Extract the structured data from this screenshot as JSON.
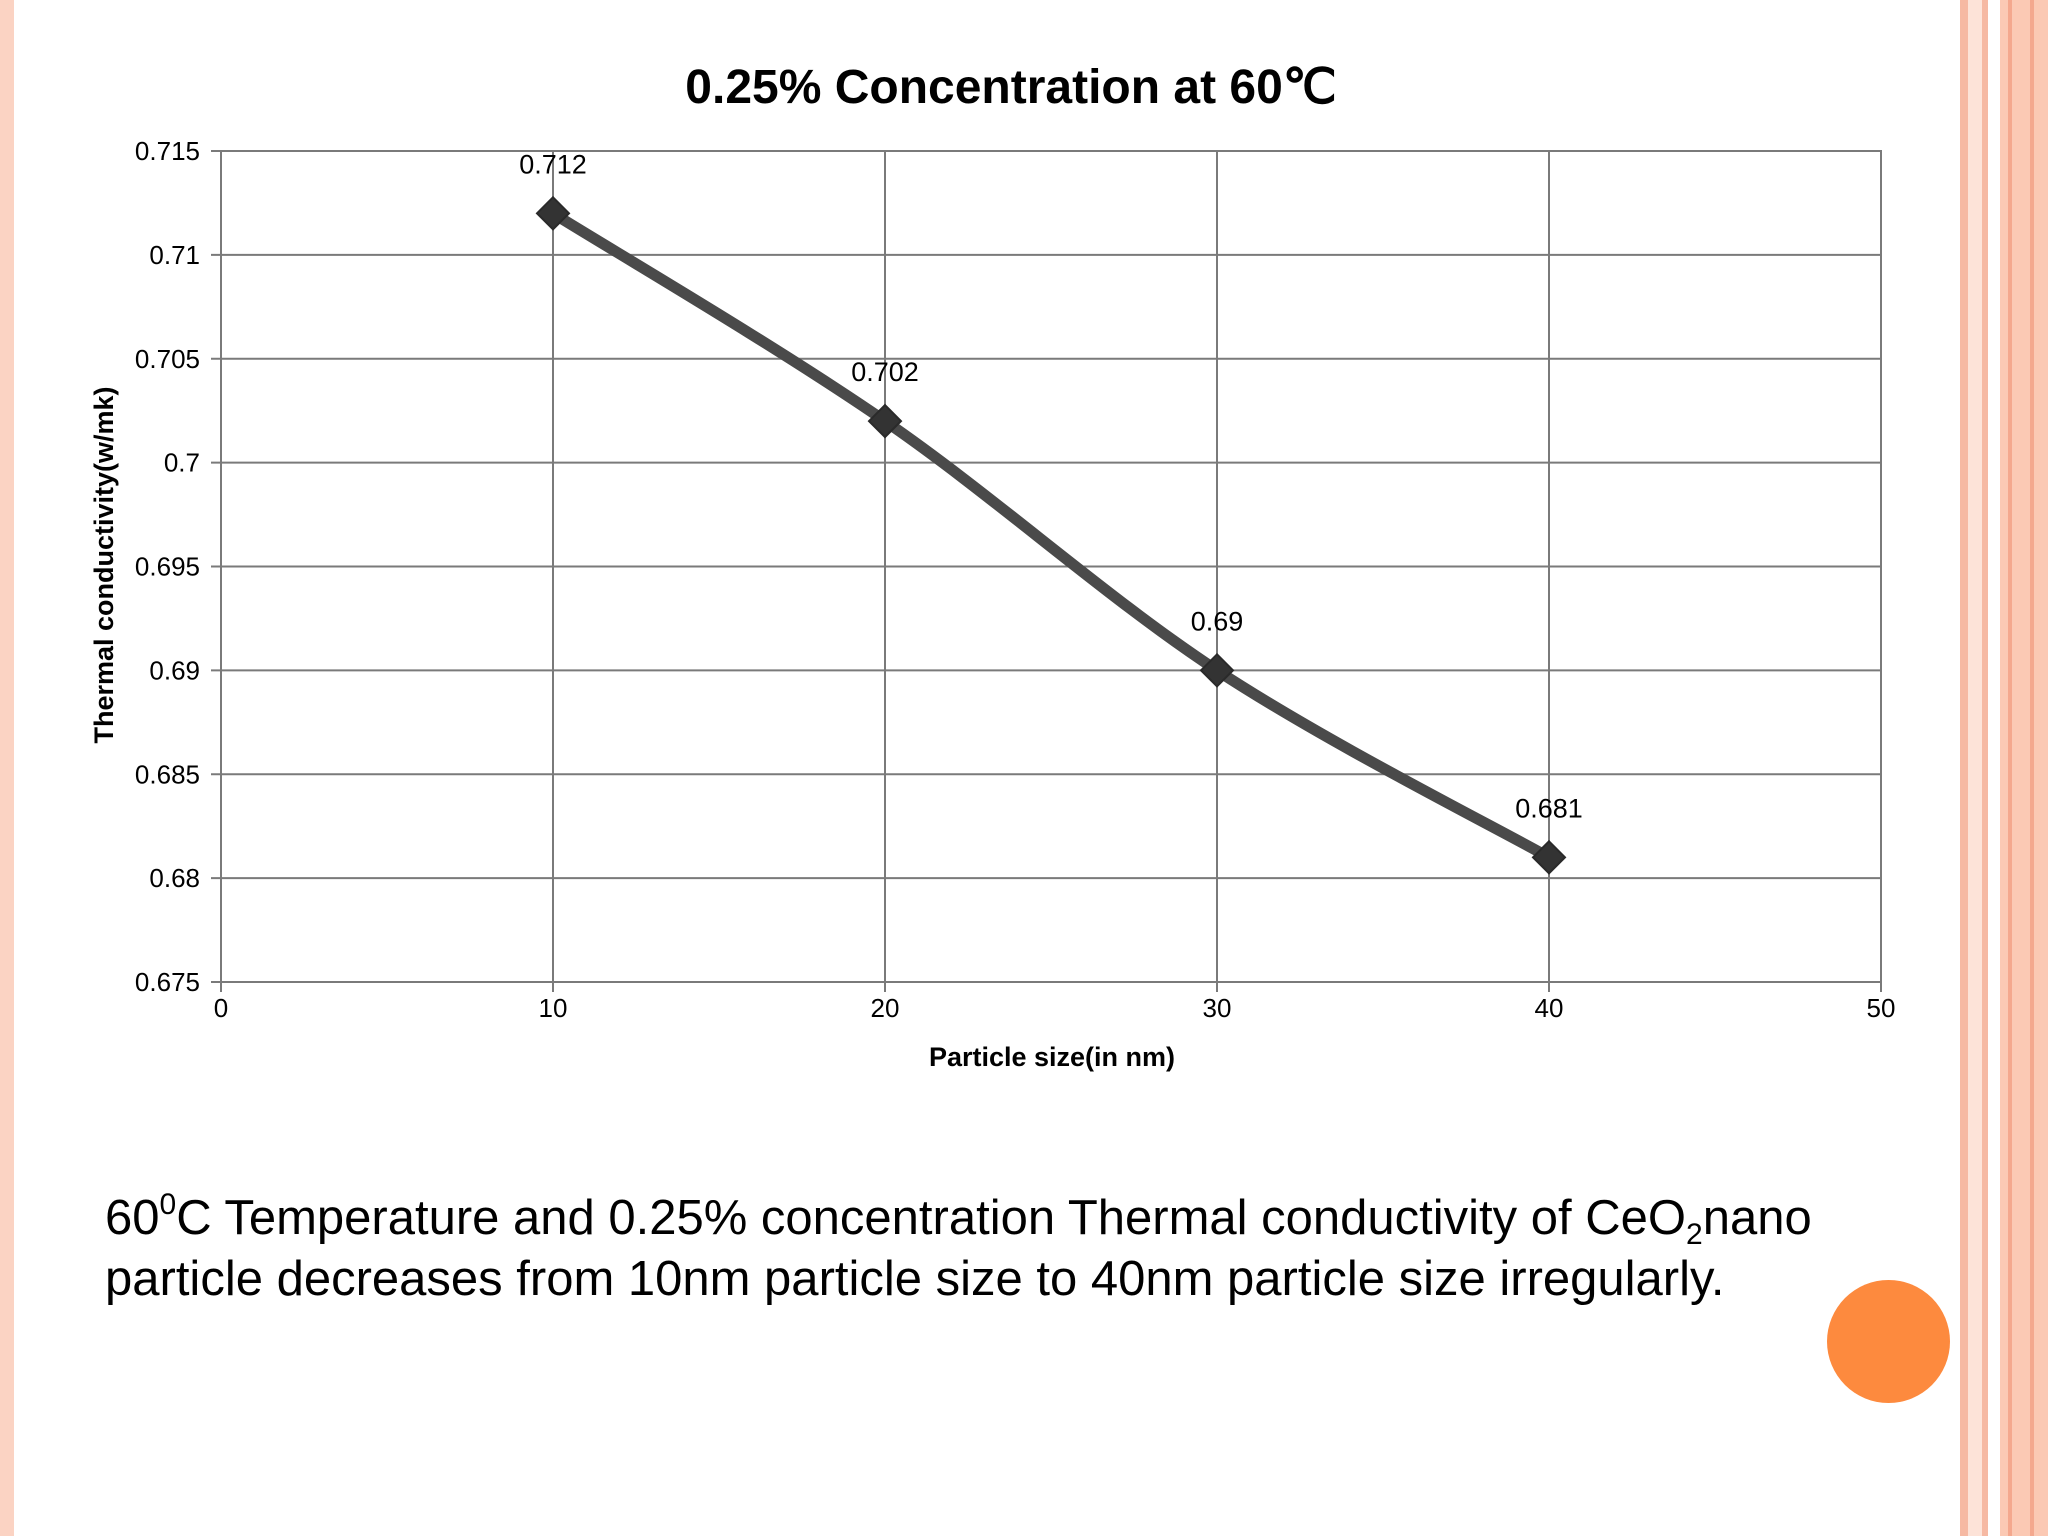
{
  "slide": {
    "colors": {
      "background": "#ffffff",
      "border_light": "#fbd3c3",
      "border_mid": "#f6b9a3",
      "accent": "#fd8a3e",
      "line": "#4a4a4a",
      "grid": "#7a7a7a"
    },
    "caption": {
      "part1": "60",
      "sup1": "0",
      "part2": "C Temperature and 0.25% concentration Thermal conductivity of CeO",
      "sub1": "2",
      "part3": "nano particle decreases from 10nm particle size to 40nm particle size irregularly."
    },
    "decorations": {
      "circle_icon": "orange-circle-icon"
    }
  },
  "chart_data": {
    "type": "line",
    "title": "0.25% Concentration at 60℃",
    "xlabel": "Particle size(in nm)",
    "ylabel": "Thermal conductivity(w/mk)",
    "xlim": [
      0,
      50
    ],
    "ylim": [
      0.675,
      0.715
    ],
    "x_ticks": [
      0,
      10,
      20,
      30,
      40,
      50
    ],
    "x_tick_labels": [
      "0",
      "10",
      "20",
      "30",
      "40",
      "50"
    ],
    "y_ticks": [
      0.675,
      0.68,
      0.685,
      0.69,
      0.695,
      0.7,
      0.705,
      0.71,
      0.715
    ],
    "y_tick_labels": [
      "0.675",
      "0.68",
      "0.685",
      "0.69",
      "0.695",
      "0.7",
      "0.705",
      "0.71",
      "0.715"
    ],
    "grid": true,
    "marker": "diamond",
    "smooth": true,
    "series": [
      {
        "x": [
          10,
          20,
          30,
          40
        ],
        "values": [
          0.712,
          0.702,
          0.69,
          0.681
        ],
        "labels": [
          "0.712",
          "0.702",
          "0.69",
          "0.681"
        ]
      }
    ]
  }
}
